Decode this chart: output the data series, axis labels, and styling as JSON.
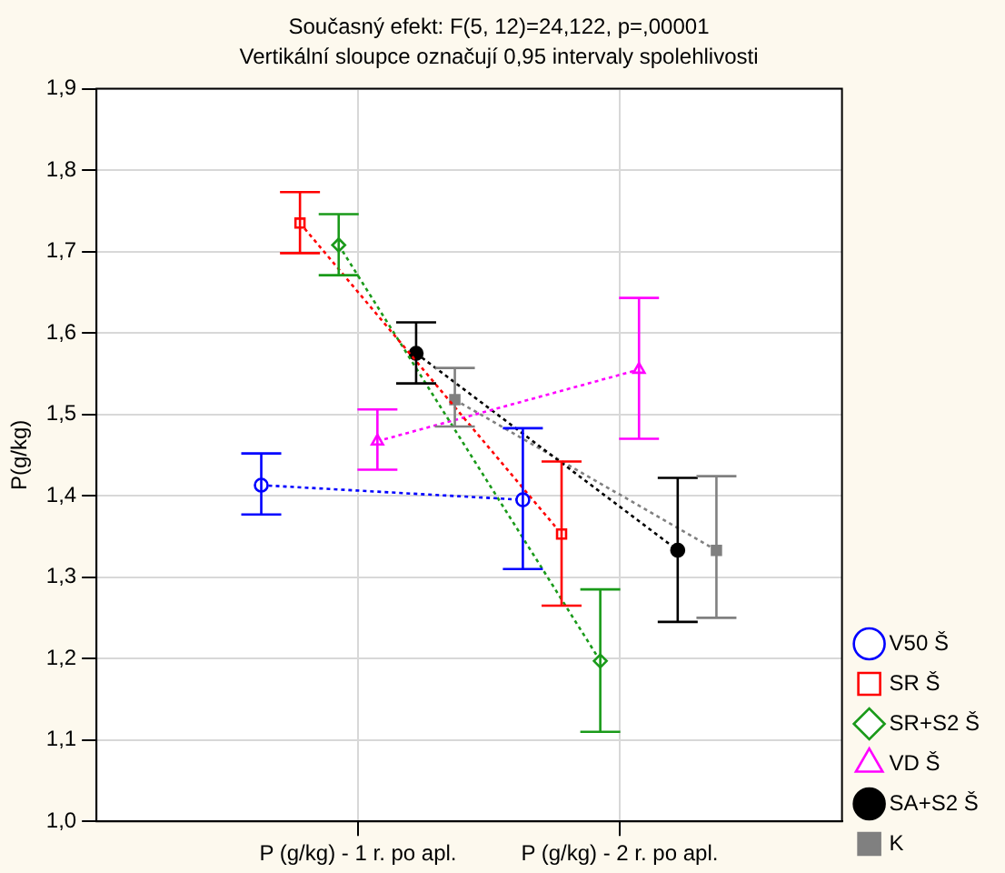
{
  "chart_data": {
    "type": "line",
    "title": "Současný efekt: F(5, 12)=24,122, p=,00001",
    "subtitle": "Vertikální sloupce označují 0,95 intervaly spolehlivosti",
    "ylabel": "P(g/kg)",
    "categories": [
      "P (g/kg) - 1 r. po apl.",
      "P (g/kg) - 2 r. po apl."
    ],
    "ylim": [
      1.0,
      1.9
    ],
    "yticks": [
      {
        "value": 1.0,
        "label": "1,0"
      },
      {
        "value": 1.1,
        "label": "1,1"
      },
      {
        "value": 1.2,
        "label": "1,2"
      },
      {
        "value": 1.3,
        "label": "1,3"
      },
      {
        "value": 1.4,
        "label": "1,4"
      },
      {
        "value": 1.5,
        "label": "1,5"
      },
      {
        "value": 1.6,
        "label": "1,6"
      },
      {
        "value": 1.7,
        "label": "1,7"
      },
      {
        "value": 1.8,
        "label": "1,8"
      },
      {
        "value": 1.9,
        "label": "1,9"
      }
    ],
    "grid": true,
    "legend": "bottom right",
    "line_style": "dotted",
    "series": [
      {
        "name": "V50 Š",
        "color": "#0000ff",
        "marker": "circle",
        "values": [
          1.413,
          1.395
        ],
        "errors": [
          [
            1.377,
            1.452
          ],
          [
            1.31,
            1.483
          ]
        ]
      },
      {
        "name": "SR Š",
        "color": "#ff0000",
        "marker": "square",
        "values": [
          1.735,
          1.353
        ],
        "errors": [
          [
            1.698,
            1.773
          ],
          [
            1.265,
            1.442
          ]
        ]
      },
      {
        "name": "SR+S2 Š",
        "color": "#1a9a1a",
        "marker": "diamond",
        "values": [
          1.708,
          1.197
        ],
        "errors": [
          [
            1.671,
            1.746
          ],
          [
            1.11,
            1.285
          ]
        ]
      },
      {
        "name": "VD Š",
        "color": "#ff00ff",
        "marker": "triangle",
        "values": [
          1.467,
          1.555
        ],
        "errors": [
          [
            1.432,
            1.506
          ],
          [
            1.47,
            1.643
          ]
        ]
      },
      {
        "name": "SA+S2 Š",
        "color": "#000000",
        "marker": "circle",
        "values": [
          1.575,
          1.333
        ],
        "errors": [
          [
            1.538,
            1.613
          ],
          [
            1.245,
            1.422
          ]
        ]
      },
      {
        "name": "K",
        "color": "#808080",
        "marker": "square",
        "values": [
          1.518,
          1.333
        ],
        "errors": [
          [
            1.485,
            1.557
          ],
          [
            1.25,
            1.424
          ]
        ]
      }
    ]
  }
}
